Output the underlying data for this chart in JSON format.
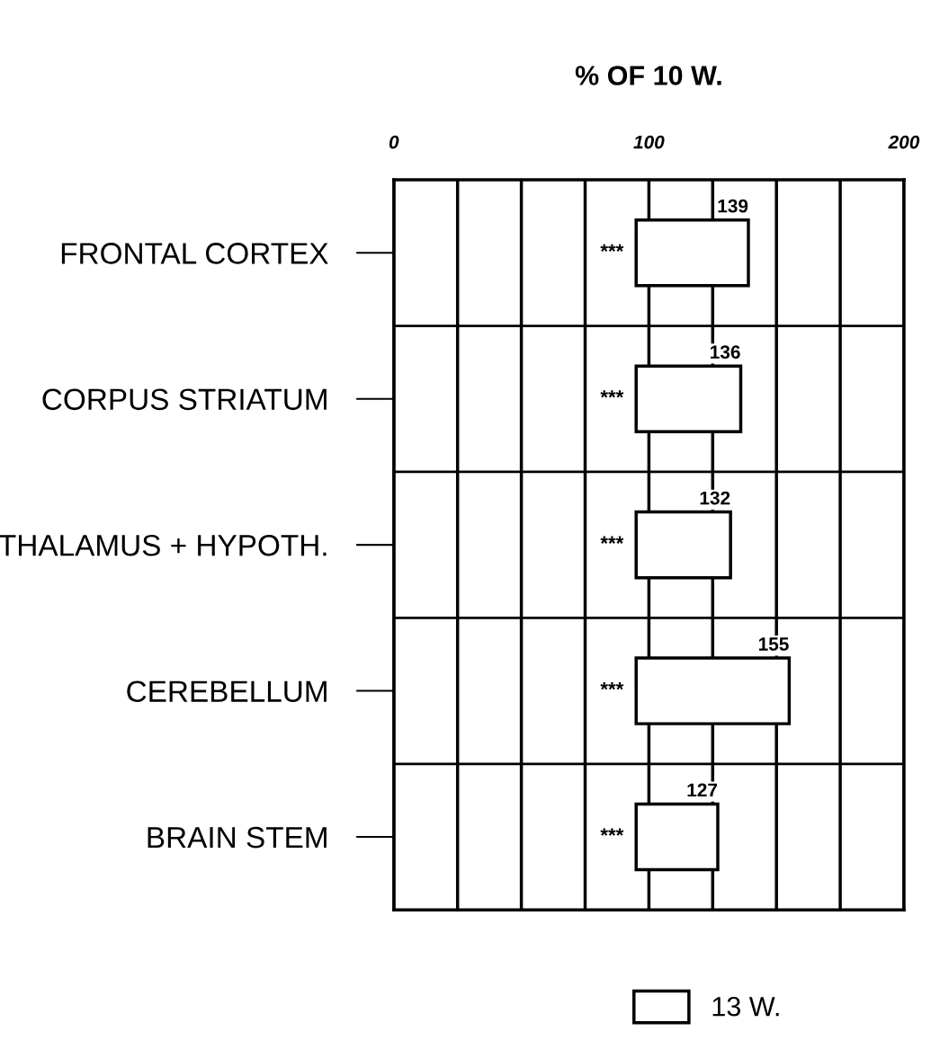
{
  "chart_data": {
    "type": "bar",
    "orientation": "horizontal",
    "xlabel": "% OF 10 W.",
    "categories": [
      "FRONTAL CORTEX",
      "CORPUS STRIATUM",
      "THALAMUS + HYPOTH.",
      "CEREBELLUM",
      "BRAIN STEM"
    ],
    "series": [
      {
        "name": "13 W.",
        "color": "#ffffff",
        "values": [
          44,
          41,
          37,
          60,
          32
        ],
        "base": [
          95,
          95,
          95,
          95,
          95
        ],
        "value_labels": [
          "139",
          "136",
          "132",
          "155",
          "127"
        ]
      }
    ],
    "xlim": [
      0,
      200
    ],
    "xticks": [
      0,
      {
        "value": 25,
        "label": null
      },
      {
        "value": 50,
        "label": null
      },
      {
        "value": 75,
        "label": null
      },
      100,
      {
        "value": 125,
        "label": null
      },
      {
        "value": 150,
        "label": null
      },
      {
        "value": 175,
        "label": null
      },
      200
    ],
    "annotations": [
      "***",
      "***",
      "***",
      "***",
      "***"
    ],
    "grid": true,
    "legend": "bottom"
  }
}
